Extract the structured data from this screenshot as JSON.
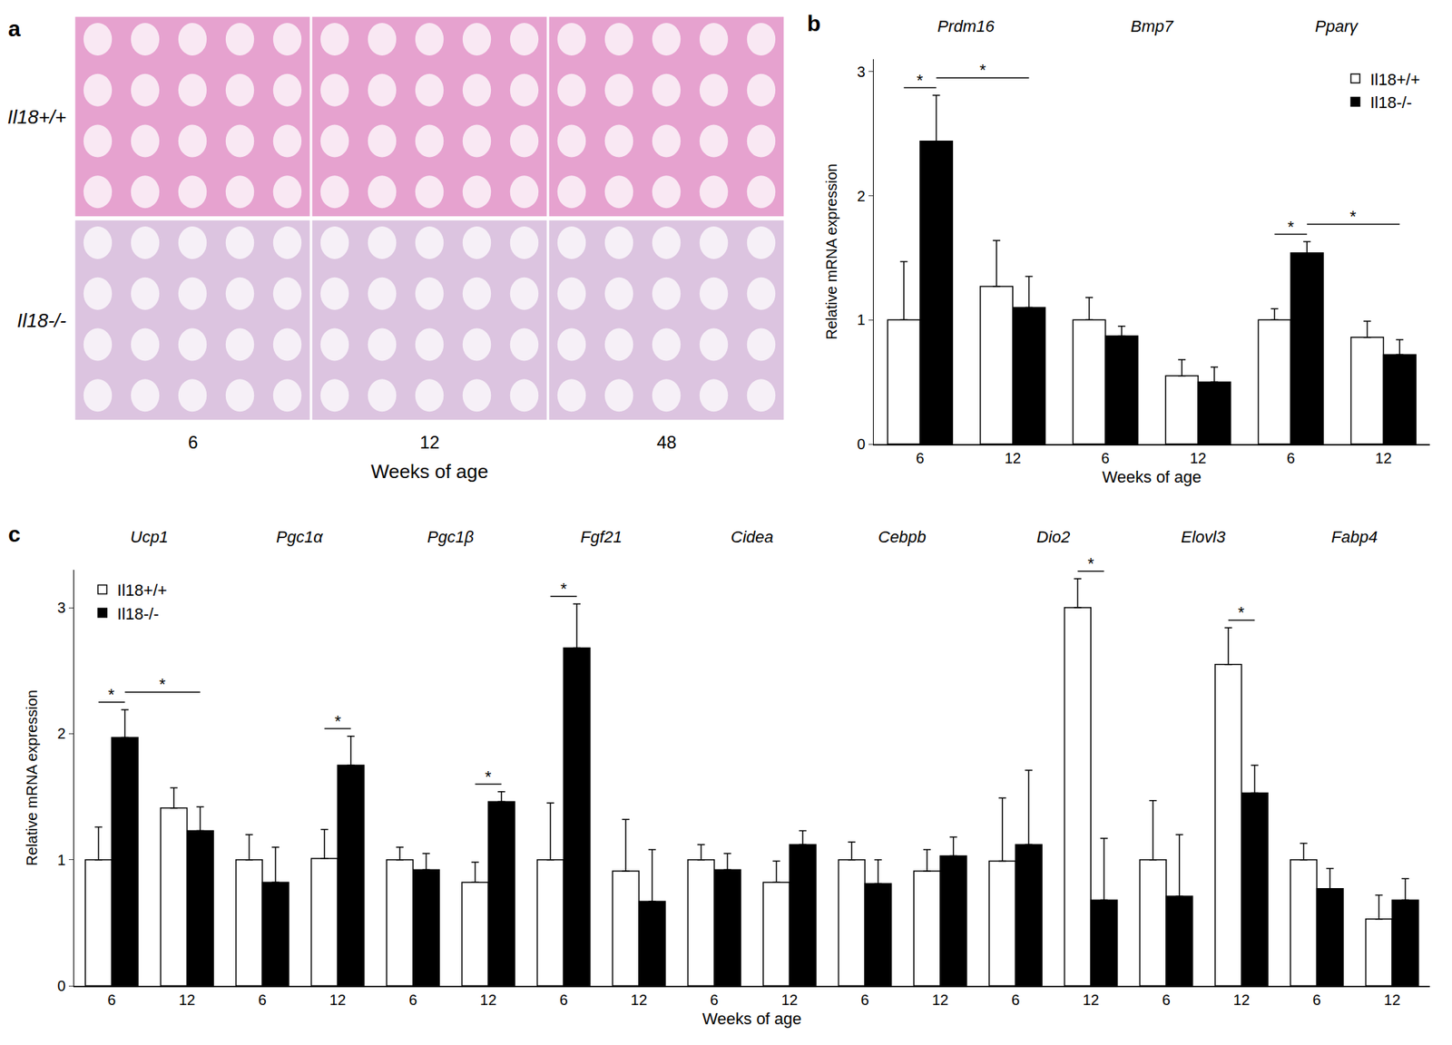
{
  "chart_data": [
    {
      "type": "image",
      "panel": "a",
      "rows": [
        "Il18+/+",
        "Il18-/-"
      ],
      "columns": [
        "6",
        "12",
        "48"
      ],
      "x_label": "Weeks of age"
    },
    {
      "type": "bar",
      "panel": "b",
      "y_label": "Relative mRNA expression",
      "x_label": "Weeks of age",
      "categories": [
        "6",
        "12",
        "6",
        "12",
        "6",
        "12"
      ],
      "groups": [
        {
          "name": "Prdm16",
          "categories": [
            0,
            1
          ]
        },
        {
          "name": "Bmp7",
          "categories": [
            2,
            3
          ]
        },
        {
          "name": "Pparγ",
          "categories": [
            4,
            5
          ]
        }
      ],
      "series": [
        {
          "name": "Il18+/+",
          "color": "#ffffff",
          "values": [
            1.0,
            1.27,
            1.0,
            0.55,
            1.0,
            0.86
          ],
          "errors": [
            0.47,
            0.37,
            0.18,
            0.13,
            0.09,
            0.13
          ]
        },
        {
          "name": "Il18-/-",
          "color": "#000000",
          "values": [
            2.44,
            1.1,
            0.87,
            0.5,
            1.54,
            0.72
          ],
          "errors": [
            0.37,
            0.25,
            0.08,
            0.12,
            0.09,
            0.12
          ]
        }
      ],
      "comparisons": [
        {
          "from": {
            "category": 0,
            "series": 0
          },
          "to": {
            "category": 0,
            "series": 1
          },
          "text": "*"
        },
        {
          "from": {
            "category": 0,
            "series": 1
          },
          "to": {
            "category": 1,
            "series": 1
          },
          "text": "*"
        },
        {
          "from": {
            "category": 4,
            "series": 0
          },
          "to": {
            "category": 4,
            "series": 1
          },
          "text": "*"
        },
        {
          "from": {
            "category": 4,
            "series": 1
          },
          "to": {
            "category": 5,
            "series": 1
          },
          "text": "*"
        }
      ],
      "ylim": [
        0,
        3.1
      ],
      "yticks": [
        0,
        1,
        2,
        3
      ],
      "grid": false,
      "legend": "upper right"
    },
    {
      "type": "bar",
      "panel": "c",
      "y_label": "Relative mRNA expression",
      "x_label": "Weeks of age",
      "categories": [
        "6",
        "12",
        "6",
        "12",
        "6",
        "12",
        "6",
        "12",
        "6",
        "12",
        "6",
        "12",
        "6",
        "12",
        "6",
        "12",
        "6",
        "12"
      ],
      "groups": [
        {
          "name": "Ucp1",
          "categories": [
            0,
            1
          ]
        },
        {
          "name": "Pgc1α",
          "categories": [
            2,
            3
          ]
        },
        {
          "name": "Pgc1β",
          "categories": [
            4,
            5
          ]
        },
        {
          "name": "Fgf21",
          "categories": [
            6,
            7
          ]
        },
        {
          "name": "Cidea",
          "categories": [
            8,
            9
          ]
        },
        {
          "name": "Cebpb",
          "categories": [
            10,
            11
          ]
        },
        {
          "name": "Dio2",
          "categories": [
            12,
            13
          ]
        },
        {
          "name": "Elovl3",
          "categories": [
            14,
            15
          ]
        },
        {
          "name": "Fabp4",
          "categories": [
            16,
            17
          ]
        }
      ],
      "series": [
        {
          "name": "Il18+/+",
          "color": "#ffffff",
          "values": [
            1.0,
            1.41,
            1.0,
            1.01,
            1.0,
            0.82,
            1.0,
            0.91,
            1.0,
            0.82,
            1.0,
            0.91,
            0.99,
            3.0,
            1.0,
            2.55,
            1.0,
            0.53
          ],
          "errors": [
            0.26,
            0.16,
            0.2,
            0.23,
            0.1,
            0.16,
            0.45,
            0.41,
            0.12,
            0.17,
            0.14,
            0.17,
            0.5,
            0.23,
            0.47,
            0.29,
            0.13,
            0.19
          ]
        },
        {
          "name": "Il18-/-",
          "color": "#000000",
          "values": [
            1.97,
            1.23,
            0.82,
            1.75,
            0.92,
            1.46,
            2.68,
            0.67,
            0.92,
            1.12,
            0.81,
            1.03,
            1.12,
            0.68,
            0.71,
            1.53,
            0.77,
            0.68
          ],
          "errors": [
            0.22,
            0.19,
            0.28,
            0.23,
            0.13,
            0.08,
            0.35,
            0.41,
            0.13,
            0.11,
            0.19,
            0.15,
            0.59,
            0.49,
            0.49,
            0.22,
            0.16,
            0.17
          ]
        }
      ],
      "comparisons": [
        {
          "from": {
            "category": 0,
            "series": 0
          },
          "to": {
            "category": 0,
            "series": 1
          },
          "text": "*"
        },
        {
          "from": {
            "category": 0,
            "series": 1
          },
          "to": {
            "category": 1,
            "series": 1
          },
          "text": "*"
        },
        {
          "from": {
            "category": 3,
            "series": 0
          },
          "to": {
            "category": 3,
            "series": 1
          },
          "text": "*"
        },
        {
          "from": {
            "category": 5,
            "series": 0
          },
          "to": {
            "category": 5,
            "series": 1
          },
          "text": "*"
        },
        {
          "from": {
            "category": 6,
            "series": 0
          },
          "to": {
            "category": 6,
            "series": 1
          },
          "text": "*"
        },
        {
          "from": {
            "category": 13,
            "series": 0
          },
          "to": {
            "category": 13,
            "series": 1
          },
          "text": "*"
        },
        {
          "from": {
            "category": 15,
            "series": 0
          },
          "to": {
            "category": 15,
            "series": 1
          },
          "text": "*"
        }
      ],
      "ylim": [
        0,
        3.3
      ],
      "yticks": [
        0,
        1,
        2,
        3
      ],
      "grid": false,
      "legend": "upper left"
    }
  ]
}
